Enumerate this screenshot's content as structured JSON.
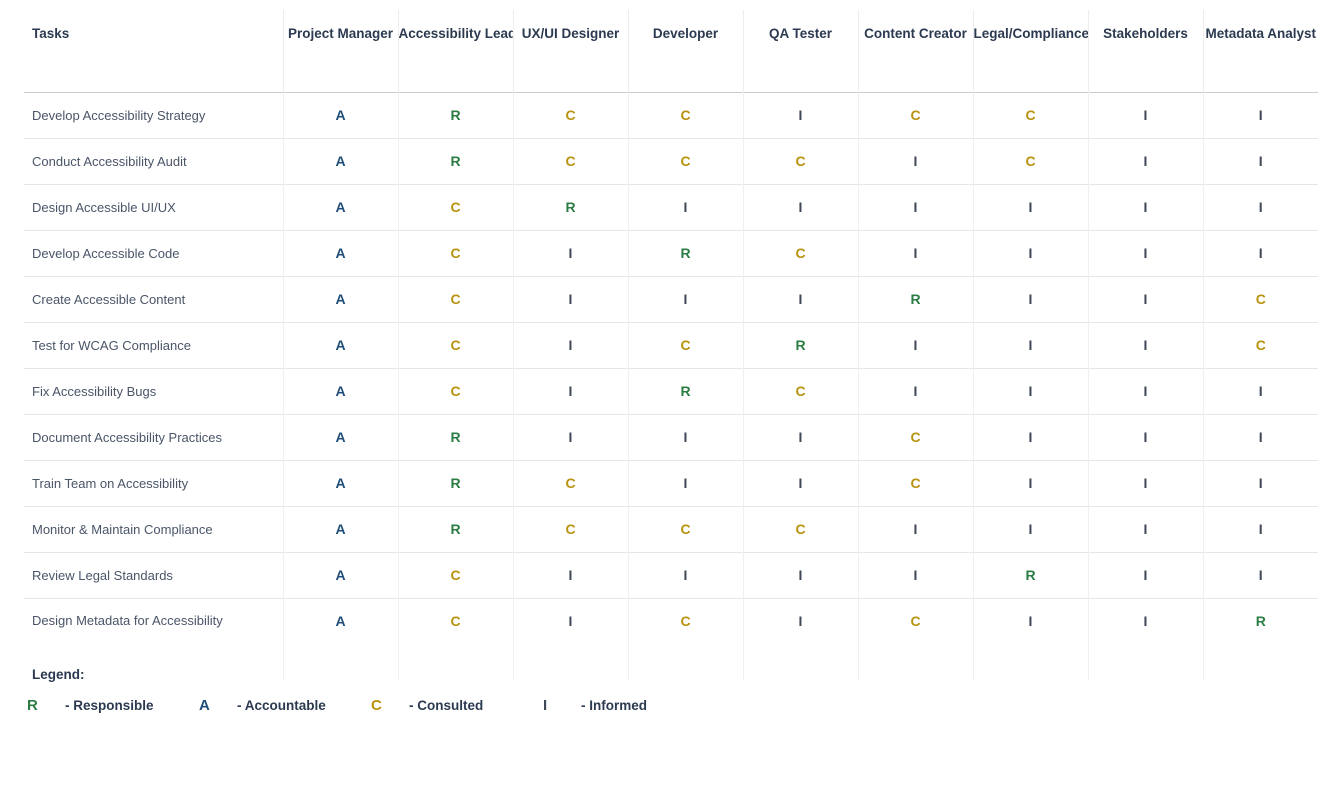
{
  "table": {
    "columns": [
      "Tasks",
      "Project Manager",
      "Accessibility Lead",
      "UX/UI Designer",
      "Developer",
      "QA Tester",
      "Content Creator",
      "Legal/Compliance",
      "Stakeholders",
      "Metadata Analyst"
    ],
    "rows": [
      {
        "task": "Develop Accessibility Strategy",
        "values": [
          "A",
          "R",
          "C",
          "C",
          "I",
          "C",
          "C",
          "I",
          "I"
        ]
      },
      {
        "task": "Conduct Accessibility Audit",
        "values": [
          "A",
          "R",
          "C",
          "C",
          "C",
          "I",
          "C",
          "I",
          "I"
        ]
      },
      {
        "task": "Design Accessible UI/UX",
        "values": [
          "A",
          "C",
          "R",
          "I",
          "I",
          "I",
          "I",
          "I",
          "I"
        ]
      },
      {
        "task": "Develop Accessible Code",
        "values": [
          "A",
          "C",
          "I",
          "R",
          "C",
          "I",
          "I",
          "I",
          "I"
        ]
      },
      {
        "task": "Create Accessible Content",
        "values": [
          "A",
          "C",
          "I",
          "I",
          "I",
          "R",
          "I",
          "I",
          "C"
        ]
      },
      {
        "task": "Test for WCAG Compliance",
        "values": [
          "A",
          "C",
          "I",
          "C",
          "R",
          "I",
          "I",
          "I",
          "C"
        ]
      },
      {
        "task": "Fix Accessibility Bugs",
        "values": [
          "A",
          "C",
          "I",
          "R",
          "C",
          "I",
          "I",
          "I",
          "I"
        ]
      },
      {
        "task": "Document Accessibility Practices",
        "values": [
          "A",
          "R",
          "I",
          "I",
          "I",
          "C",
          "I",
          "I",
          "I"
        ]
      },
      {
        "task": "Train Team on Accessibility",
        "values": [
          "A",
          "R",
          "C",
          "I",
          "I",
          "C",
          "I",
          "I",
          "I"
        ]
      },
      {
        "task": "Monitor & Maintain Compliance",
        "values": [
          "A",
          "R",
          "C",
          "C",
          "C",
          "I",
          "I",
          "I",
          "I"
        ]
      },
      {
        "task": "Review Legal Standards",
        "values": [
          "A",
          "C",
          "I",
          "I",
          "I",
          "I",
          "R",
          "I",
          "I"
        ]
      },
      {
        "task": "Design Metadata for Accessibility",
        "values": [
          "A",
          "C",
          "I",
          "C",
          "I",
          "C",
          "I",
          "I",
          "R"
        ]
      }
    ]
  },
  "legend": {
    "heading": "Legend:",
    "items": [
      {
        "letter": "R",
        "label": "- Responsible"
      },
      {
        "letter": "A",
        "label": "- Accountable"
      },
      {
        "letter": "C",
        "label": "- Consulted"
      },
      {
        "letter": "I",
        "label": "- Informed"
      }
    ]
  },
  "colors": {
    "A": "#1f4e79",
    "R": "#2b7d44",
    "C": "#b8930f",
    "I": "#3f4856"
  }
}
